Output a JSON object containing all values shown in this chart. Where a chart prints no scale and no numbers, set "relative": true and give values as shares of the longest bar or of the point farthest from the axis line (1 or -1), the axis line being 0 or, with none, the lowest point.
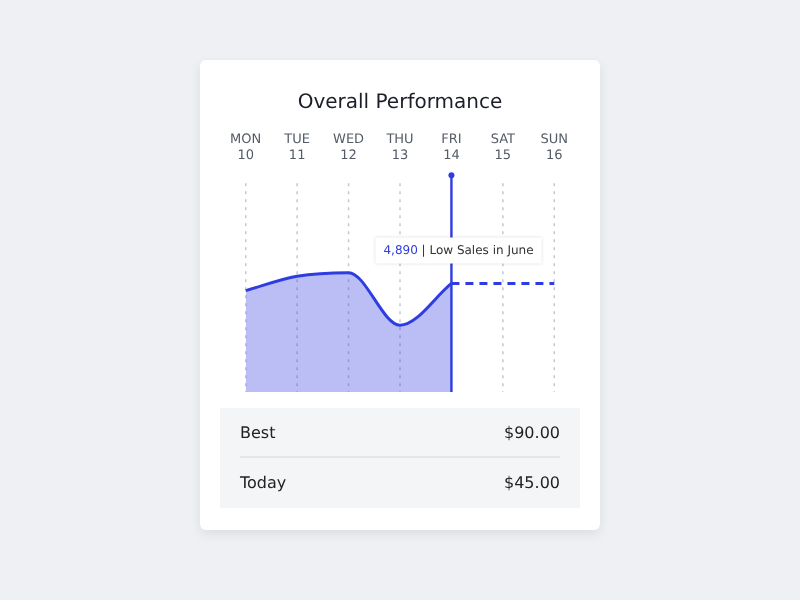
{
  "chart_data": {
    "type": "area",
    "title": "Overall Performance",
    "relative": true,
    "categories": [
      "MON 10",
      "TUE 11",
      "WED 12",
      "THU 13",
      "FRI 14",
      "SAT 15",
      "SUN 16"
    ],
    "series": [
      {
        "color": "#2f3de0",
        "values": [
          0.85,
          0.97,
          1,
          0.56,
          0.91,
          null,
          null
        ]
      },
      {
        "type": "line",
        "line_style": "dashed",
        "color": "#2f3de0",
        "values": [
          null,
          null,
          null,
          null,
          0.91,
          0.91,
          0.91
        ]
      }
    ],
    "ref_lines": [
      {
        "axis": "x",
        "value": "FRI 14",
        "color": "#2f3de0"
      }
    ],
    "annotations": [
      {
        "text": "4,890 | Low Sales in June",
        "x": "FRI 14",
        "y": 0.91
      },
      "Best",
      "$90.00",
      "Today",
      "$45.00"
    ],
    "grid": "x",
    "legend": false,
    "marker": "none"
  }
}
